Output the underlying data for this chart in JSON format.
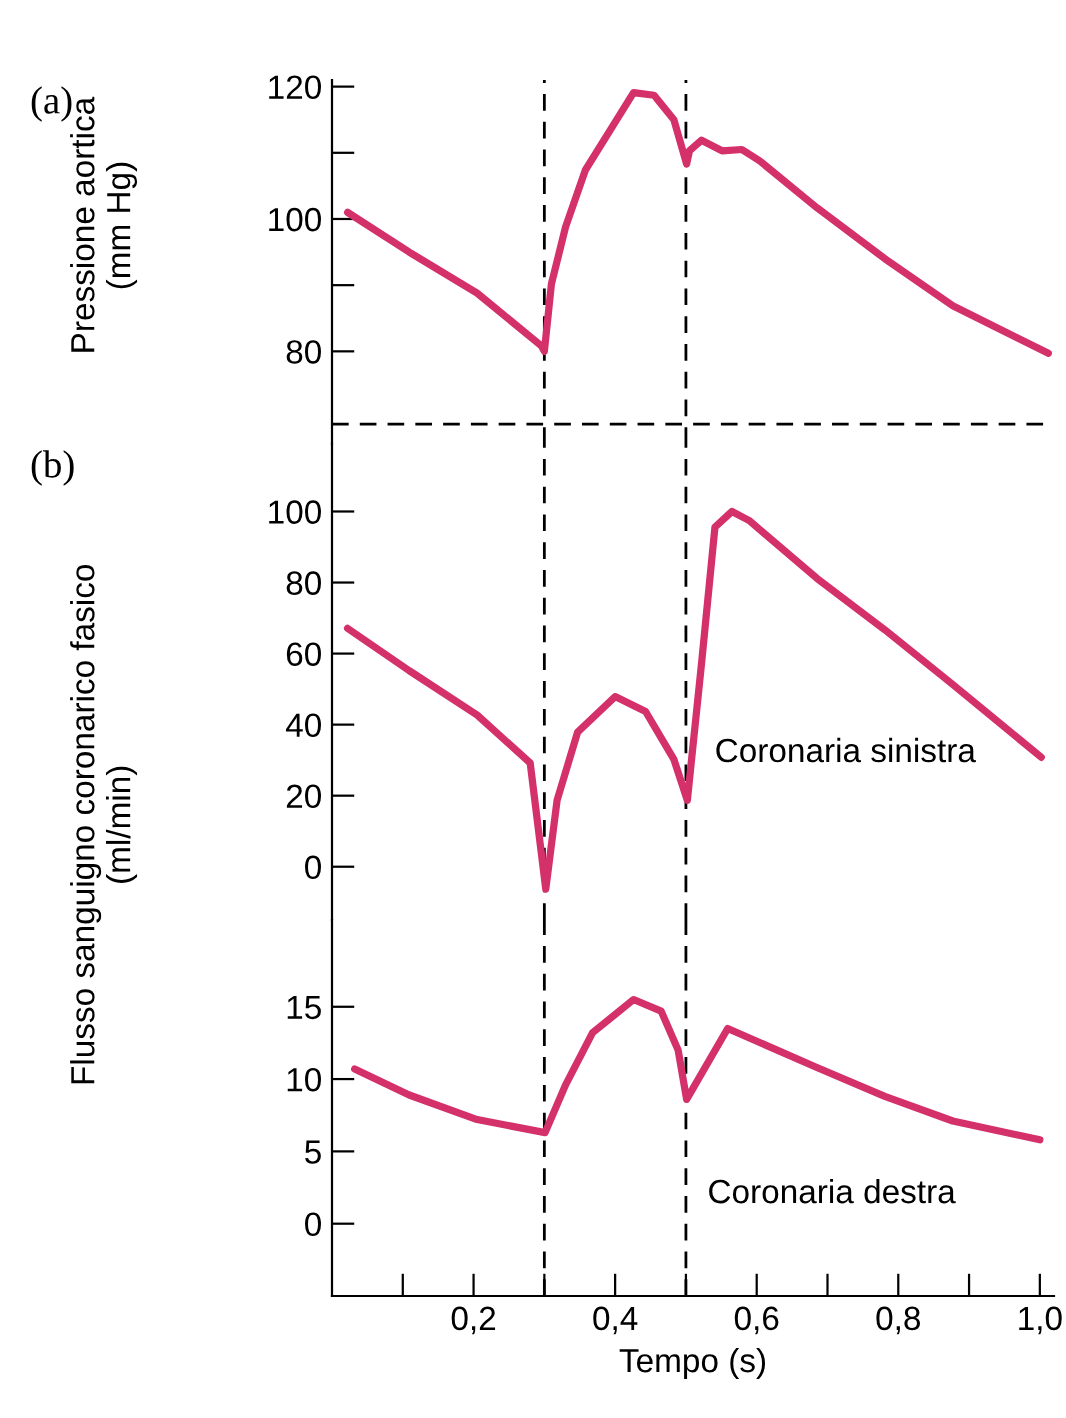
{
  "chart_data": [
    {
      "type": "line",
      "annotations": [
        "(a)"
      ],
      "ylabel": "Pressione aortica\n(mm Hg)",
      "xlim": [
        0,
        1.02
      ],
      "ylim": [
        66,
        121
      ],
      "yticks": [
        80,
        {
          "value": 90,
          "label": null
        },
        100,
        {
          "value": 110,
          "label": null
        },
        120
      ],
      "tick_labels": "y",
      "grid": false,
      "legend": false,
      "ref_lines": [
        {
          "axis": "x",
          "value": 0.3,
          "line_style": "dashed",
          "color": "#000000"
        },
        {
          "axis": "x",
          "value": 0.5,
          "line_style": "dashed",
          "color": "#000000"
        },
        {
          "axis": "y",
          "value": 69,
          "line_style": "dashed",
          "color": "#000000"
        }
      ],
      "series": [
        {
          "color": "#d4306a",
          "x": [
            0.022,
            0.109,
            0.205,
            0.296,
            0.3,
            0.31,
            0.33,
            0.358,
            0.397,
            0.426,
            0.455,
            0.483,
            0.501,
            0.505,
            0.522,
            0.551,
            0.579,
            0.604,
            0.685,
            0.781,
            0.877,
            1.012
          ],
          "values": [
            101,
            95,
            88.8,
            80.8,
            80,
            90.2,
            98.8,
            107.4,
            114.1,
            119.1,
            118.7,
            115,
            108.3,
            110.3,
            111.9,
            110.3,
            110.5,
            108.8,
            101.7,
            94,
            86.9,
            79.7
          ]
        }
      ]
    },
    {
      "type": "line",
      "annotations": [
        "(b)"
      ],
      "ylabel": "Flusso sanguigno coronarico fasico\n(ml/min)",
      "xlim": [
        0,
        1.02
      ],
      "ylim": [
        -15,
        119
      ],
      "yticks": [
        0,
        20,
        40,
        60,
        80,
        100
      ],
      "tick_labels": "y",
      "grid": false,
      "legend": false,
      "ref_lines": [
        {
          "axis": "x",
          "value": 0.3,
          "line_style": "dashed",
          "color": "#000000"
        },
        {
          "axis": "x",
          "value": 0.5,
          "line_style": "dashed",
          "color": "#000000"
        }
      ],
      "series": [
        {
          "name": "Coronaria sinistra",
          "color": "#d4306a",
          "x": [
            0.022,
            0.109,
            0.205,
            0.28,
            0.302,
            0.318,
            0.347,
            0.4,
            0.443,
            0.483,
            0.502,
            0.522,
            0.541,
            0.565,
            0.589,
            0.685,
            0.781,
            0.877,
            1.002
          ],
          "values": [
            67.1,
            55.2,
            42.7,
            29.2,
            -6.3,
            18.7,
            37.9,
            47.9,
            43.7,
            30.2,
            18.7,
            57.1,
            95.6,
            100,
            97.5,
            81.2,
            66.7,
            51.3,
            30.8
          ]
        }
      ]
    },
    {
      "type": "line",
      "xlabel": "Tempo (s)",
      "xlim": [
        0,
        1.02
      ],
      "ylim": [
        -5,
        21
      ],
      "yticks": [
        0,
        5,
        10,
        15
      ],
      "xticks": [
        {
          "value": 0.1,
          "label": null
        },
        {
          "value": 0.2,
          "label": "0,2"
        },
        {
          "value": 0.3,
          "label": null
        },
        {
          "value": 0.4,
          "label": "0,4"
        },
        {
          "value": 0.5,
          "label": null
        },
        {
          "value": 0.6,
          "label": "0,6"
        },
        {
          "value": 0.7,
          "label": null
        },
        {
          "value": 0.8,
          "label": "0,8"
        },
        {
          "value": 0.9,
          "label": null
        },
        {
          "value": 1.0,
          "label": "1,0"
        }
      ],
      "grid": false,
      "legend": false,
      "ref_lines": [
        {
          "axis": "x",
          "value": 0.3,
          "line_style": "dashed",
          "color": "#000000"
        },
        {
          "axis": "x",
          "value": 0.5,
          "line_style": "dashed",
          "color": "#000000"
        }
      ],
      "series": [
        {
          "name": "Coronaria destra",
          "color": "#d4306a",
          "x": [
            0.032,
            0.109,
            0.205,
            0.301,
            0.33,
            0.368,
            0.426,
            0.465,
            0.489,
            0.501,
            0.559,
            0.685,
            0.781,
            0.877,
            1.0
          ],
          "values": [
            10.7,
            8.9,
            7.2,
            6.3,
            9.6,
            13.2,
            15.5,
            14.7,
            12.0,
            8.6,
            13.5,
            10.8,
            8.8,
            7.1,
            5.8
          ]
        }
      ]
    }
  ]
}
